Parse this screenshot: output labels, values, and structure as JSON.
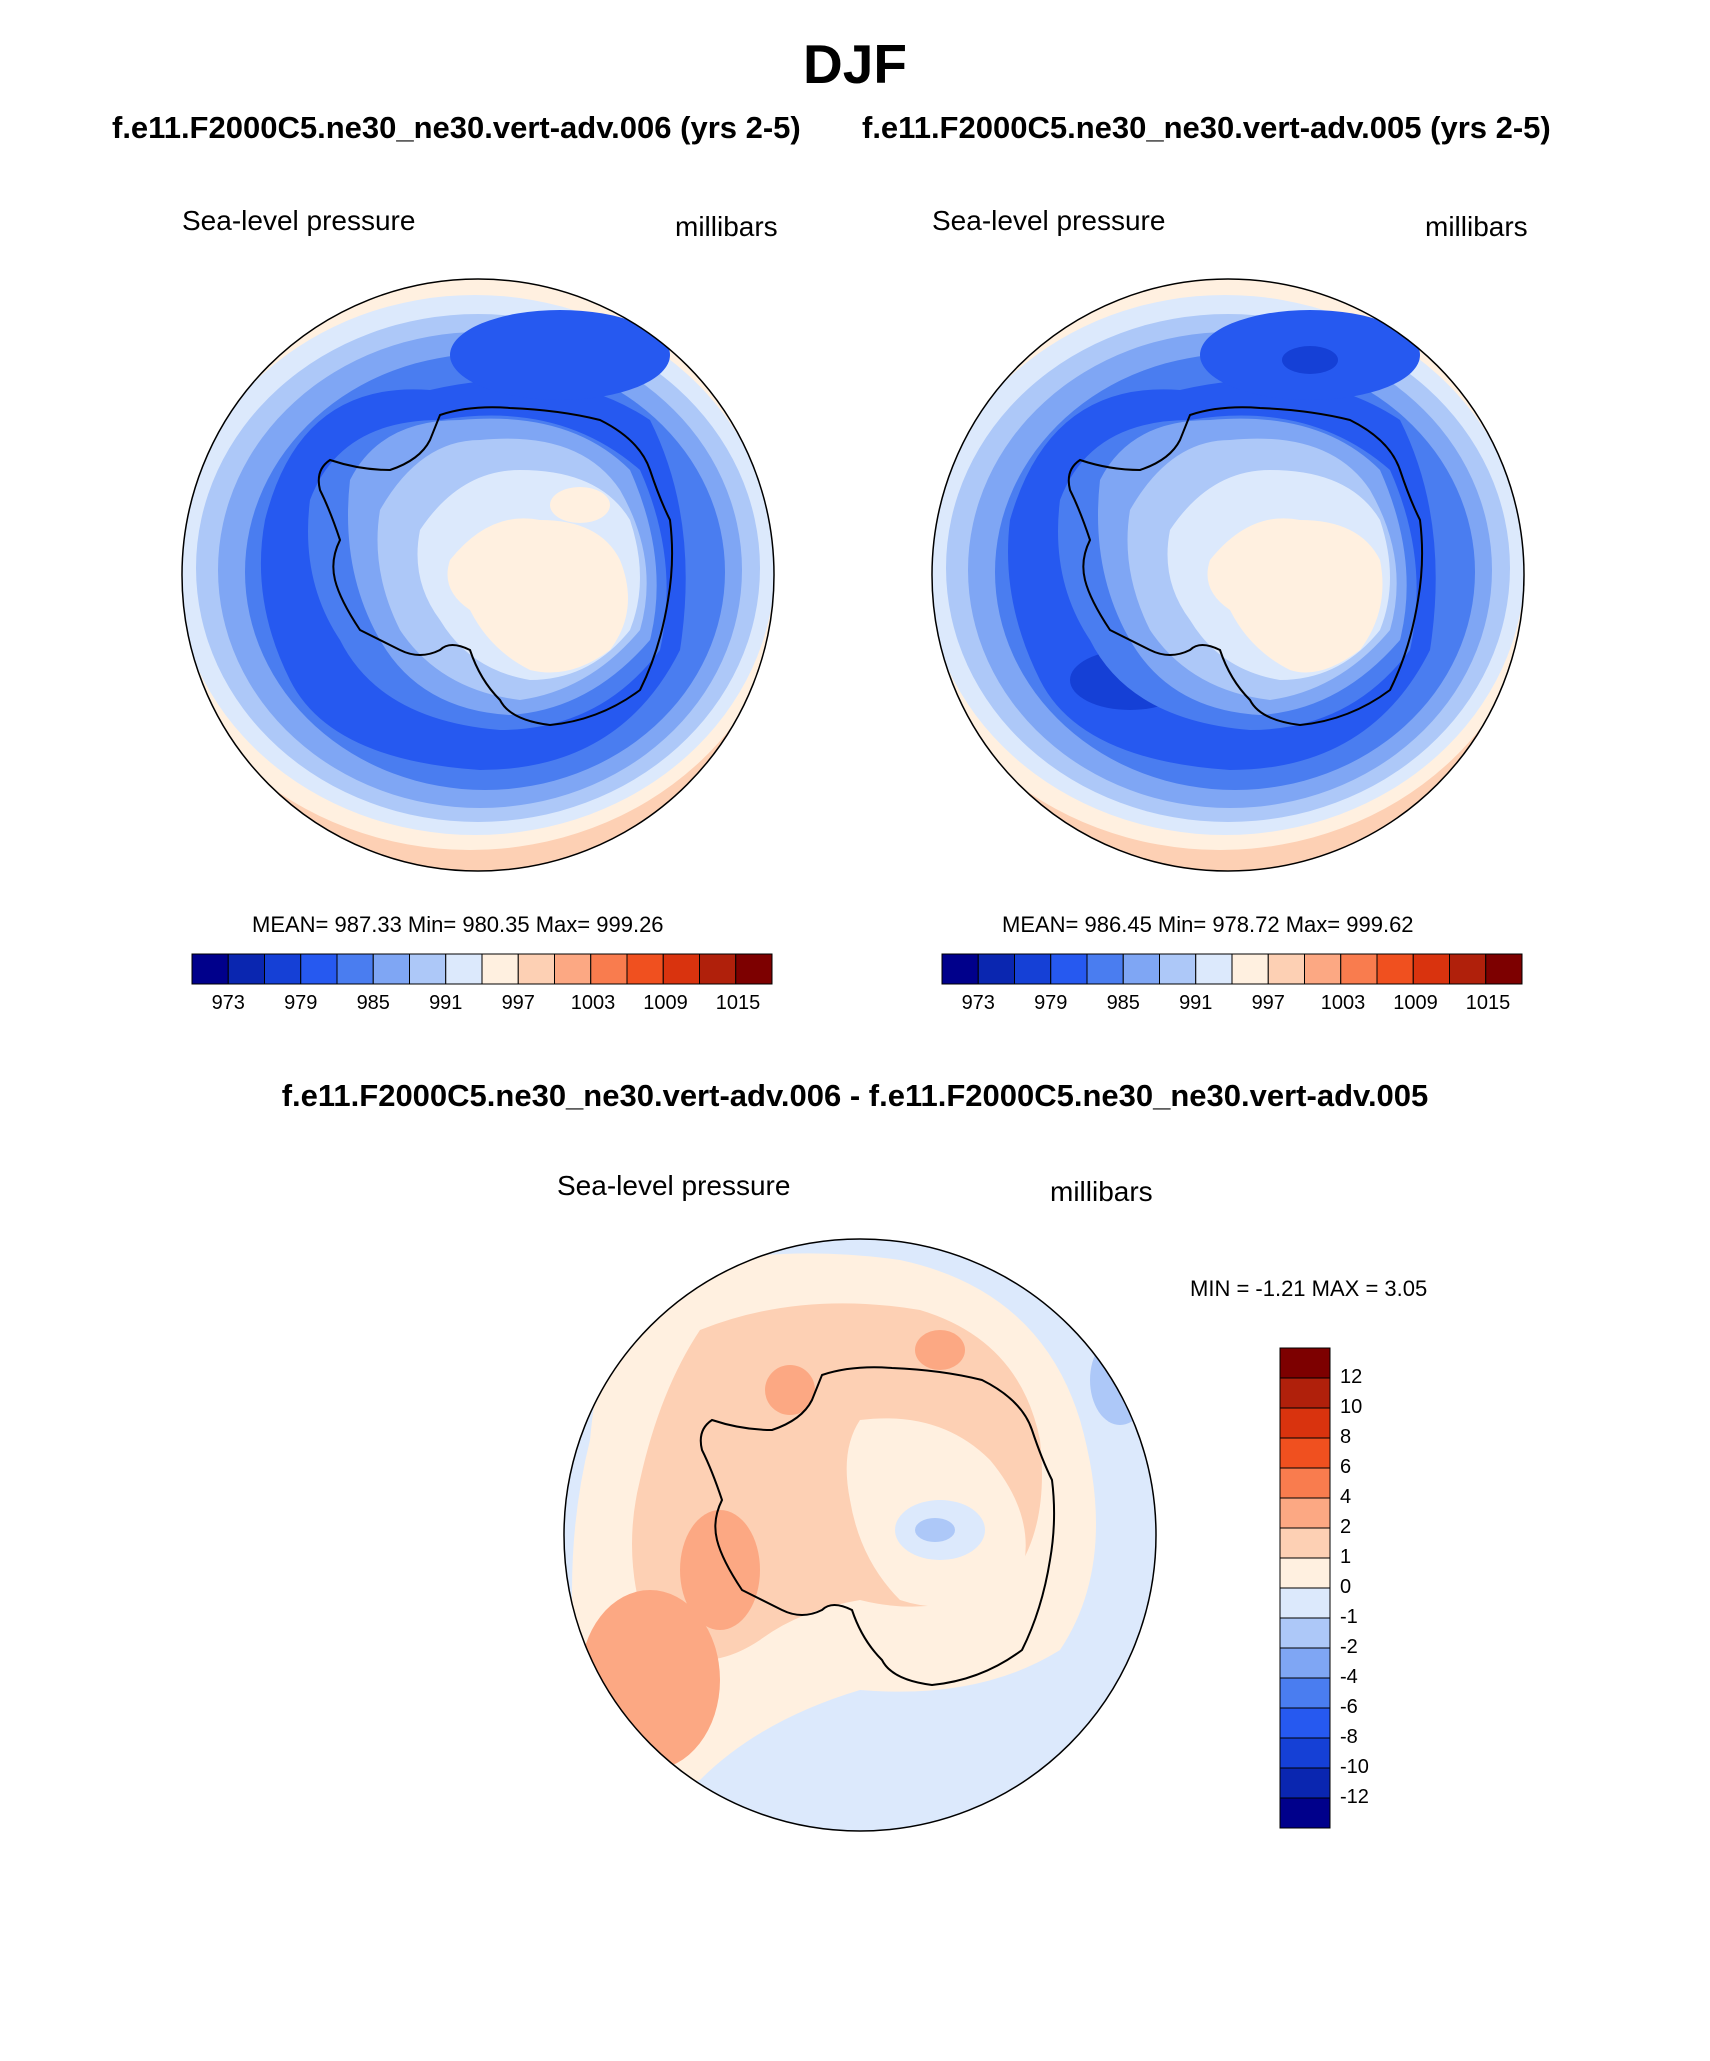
{
  "title": "DJF",
  "panels": [
    {
      "case_title": "f.e11.F2000C5.ne30_ne30.vert-adv.006 (yrs 2-5)",
      "field": "Sea-level pressure",
      "units": "millibars",
      "stats": "MEAN= 987.33  Min= 980.35  Max= 999.26"
    },
    {
      "case_title": "f.e11.F2000C5.ne30_ne30.vert-adv.005 (yrs 2-5)",
      "field": "Sea-level pressure",
      "units": "millibars",
      "stats": "MEAN= 986.45  Min= 978.72  Max= 999.62"
    }
  ],
  "diff_panel": {
    "title": "f.e11.F2000C5.ne30_ne30.vert-adv.006 - f.e11.F2000C5.ne30_ne30.vert-adv.005",
    "field": "Sea-level pressure",
    "units": "millibars",
    "stats": "MIN =  -1.21 MAX =   3.05"
  },
  "colorbar_main": {
    "colors": [
      "#00008b",
      "#0a26b0",
      "#1540d6",
      "#2659f0",
      "#4a7df0",
      "#7fa6f4",
      "#adc8f8",
      "#dce9fc",
      "#fff0e0",
      "#fdd0b4",
      "#fca883",
      "#f97c4e",
      "#f0501f",
      "#d9330e",
      "#b0200b",
      "#7d0000"
    ],
    "labels": [
      "973",
      "979",
      "985",
      "991",
      "997",
      "1003",
      "1009",
      "1015"
    ]
  },
  "colorbar_diff": {
    "colors": [
      "#00008b",
      "#0a26b0",
      "#1540d6",
      "#2659f0",
      "#4a7df0",
      "#7fa6f4",
      "#adc8f8",
      "#dce9fc",
      "#fff0e0",
      "#fdd0b4",
      "#fca883",
      "#f97c4e",
      "#f0501f",
      "#d9330e",
      "#b0200b",
      "#7d0000"
    ],
    "labels": [
      "12",
      "10",
      "8",
      "6",
      "4",
      "2",
      "1",
      "0",
      "-1",
      "-2",
      "-4",
      "-6",
      "-8",
      "-10",
      "-12"
    ]
  }
}
